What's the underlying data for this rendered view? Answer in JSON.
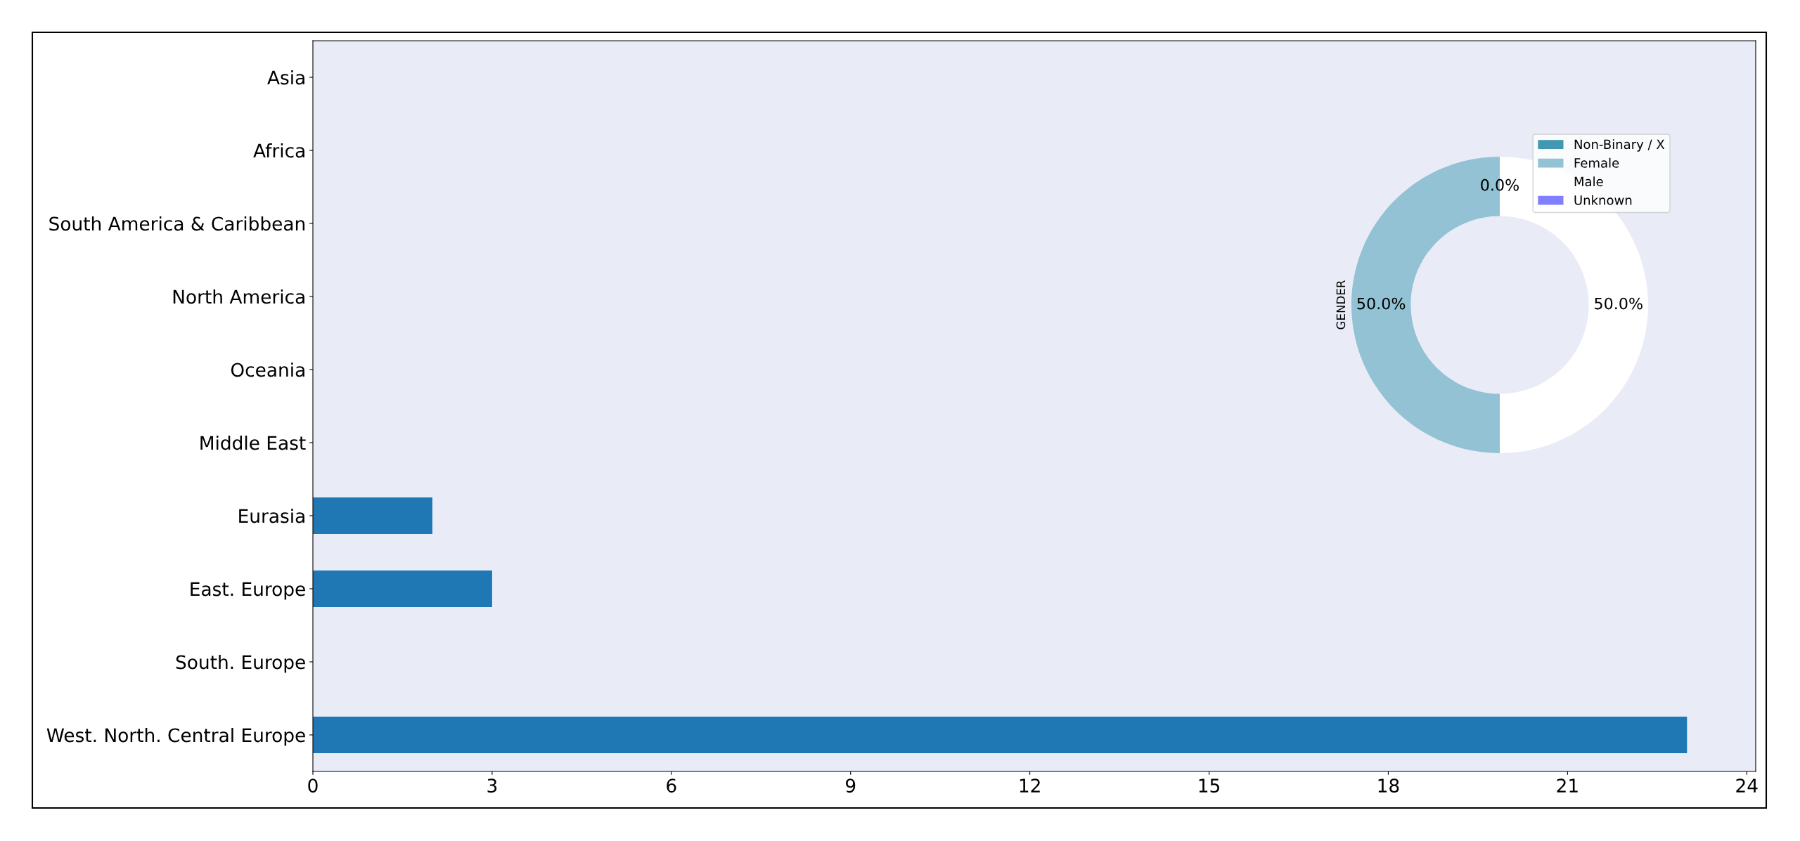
{
  "chart_data": [
    {
      "type": "bar",
      "orientation": "horizontal",
      "categories": [
        "Asia",
        "Africa",
        "South America & Caribbean",
        "North America",
        "Oceania",
        "Middle East",
        "Eurasia",
        "East. Europe",
        "South. Europe",
        "West. North. Central Europe"
      ],
      "values": [
        0,
        0,
        0,
        0,
        0,
        0,
        2,
        3,
        0,
        23
      ],
      "color": "#1f77b4",
      "xlim": [
        0,
        24.15
      ],
      "xticks": [
        0,
        3,
        6,
        9,
        12,
        15,
        18,
        21,
        24
      ]
    },
    {
      "type": "donut",
      "ylabel": "GENDER",
      "categories": [
        "Non-Binary / X",
        "Female",
        "Male",
        "Unknown"
      ],
      "values": [
        0,
        50,
        50,
        0
      ],
      "colors": [
        "#4198b0",
        "#92c2d4",
        "#ffffff",
        "#8080ff"
      ],
      "value_labels": [
        "0.0%",
        "50.0%",
        "50.0%",
        null
      ],
      "legend": "top right"
    }
  ]
}
